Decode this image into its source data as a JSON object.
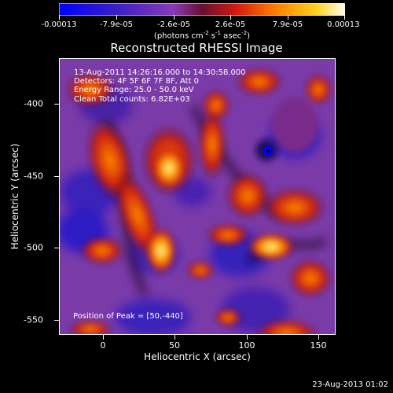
{
  "colorbar": {
    "tick_labels": [
      "-0.00013",
      "-7.9e-05",
      "-2.6e-05",
      "2.6e-05",
      "7.9e-05",
      "0.00013"
    ],
    "units_prefix": "(photons cm",
    "units_exp1": "-2",
    "units_mid": " s",
    "units_exp2": "-1",
    "units_mid2": " asec",
    "units_exp3": "-2",
    "units_suffix": ")",
    "range": [
      -0.00013,
      0.00013
    ]
  },
  "plot": {
    "title": "Reconstructed RHESSI Image",
    "xlabel": "Heliocentric X (arcsec)",
    "ylabel": "Heliocentric Y (arcsec)",
    "x_ticks": [
      "0",
      "50",
      "100",
      "150"
    ],
    "y_ticks": [
      "-400",
      "-450",
      "-500",
      "-550"
    ],
    "info_lines": [
      "13-Aug-2011 14:26:16.000 to 14:30:58.000",
      "Detectors: 4F 5F 6F 7F 8F, Att 0",
      "Energy Range: 25.0 - 50.0 keV",
      "Clean      Total counts: 6.82E+03"
    ],
    "peak": "Position of Peak = [50,-440]"
  },
  "footer": "23-Aug-2013 01:02"
}
